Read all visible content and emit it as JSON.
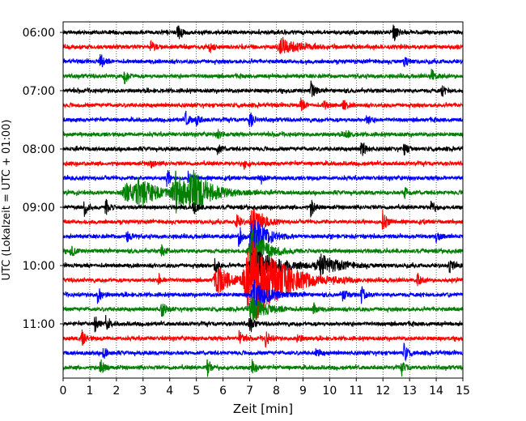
{
  "chart_data": {
    "type": "line",
    "subtype": "helicorder",
    "xlabel": "Zeit  [min]",
    "ylabel": "UTC (Lokalzeit = UTC + 01:00)",
    "xlim": [
      0,
      15
    ],
    "x_ticks": [
      0,
      1,
      2,
      3,
      4,
      5,
      6,
      7,
      8,
      9,
      10,
      11,
      12,
      13,
      14,
      15
    ],
    "y_ticks": [
      "06:00",
      "07:00",
      "08:00",
      "09:00",
      "10:00",
      "11:00"
    ],
    "y_range_utc": [
      "06:00",
      "12:00"
    ],
    "minutes_per_row": 15,
    "grid": "vertical dotted at each minute",
    "colors": [
      "#000000",
      "#ff0000",
      "#0000ff",
      "#008000"
    ],
    "rows": [
      {
        "start_utc": "06:00",
        "color": "#000000",
        "bursts": [
          {
            "t": 4.3,
            "a": 0.55
          },
          {
            "t": 12.4,
            "a": 0.7
          }
        ]
      },
      {
        "start_utc": "06:15",
        "color": "#ff0000",
        "bursts": [
          {
            "t": 3.3,
            "a": 0.4
          },
          {
            "t": 8.2,
            "a": 0.45,
            "w": 0.6
          },
          {
            "t": 5.5,
            "a": 0.35
          }
        ]
      },
      {
        "start_utc": "06:30",
        "color": "#0000ff",
        "bursts": [
          {
            "t": 1.4,
            "a": 0.5
          },
          {
            "t": 12.8,
            "a": 0.3
          }
        ]
      },
      {
        "start_utc": "06:45",
        "color": "#008000",
        "bursts": [
          {
            "t": 2.3,
            "a": 0.45
          },
          {
            "t": 13.8,
            "a": 0.5
          }
        ]
      },
      {
        "start_utc": "07:00",
        "color": "#000000",
        "bursts": [
          {
            "t": 9.3,
            "a": 0.6
          },
          {
            "t": 14.2,
            "a": 0.4
          }
        ]
      },
      {
        "start_utc": "07:15",
        "color": "#ff0000",
        "bursts": [
          {
            "t": 8.9,
            "a": 0.45
          },
          {
            "t": 10.5,
            "a": 0.4
          },
          {
            "t": 9.8,
            "a": 0.3
          }
        ]
      },
      {
        "start_utc": "07:30",
        "color": "#0000ff",
        "bursts": [
          {
            "t": 4.6,
            "a": 0.55
          },
          {
            "t": 7.0,
            "a": 0.55
          },
          {
            "t": 11.4,
            "a": 0.35
          },
          {
            "t": 5.0,
            "a": 0.3
          }
        ]
      },
      {
        "start_utc": "07:45",
        "color": "#008000",
        "bursts": [
          {
            "t": 10.6,
            "a": 0.4
          },
          {
            "t": 5.8,
            "a": 0.3
          }
        ]
      },
      {
        "start_utc": "08:00",
        "color": "#000000",
        "bursts": [
          {
            "t": 11.2,
            "a": 0.65
          },
          {
            "t": 12.8,
            "a": 0.4
          },
          {
            "t": 5.8,
            "a": 0.35
          }
        ]
      },
      {
        "start_utc": "08:15",
        "color": "#ff0000",
        "bursts": [
          {
            "t": 3.3,
            "a": 0.3
          },
          {
            "t": 6.8,
            "a": 0.3
          }
        ]
      },
      {
        "start_utc": "08:30",
        "color": "#0000ff",
        "bursts": [
          {
            "t": 3.9,
            "a": 0.55
          },
          {
            "t": 4.7,
            "a": 0.4
          },
          {
            "t": 7.4,
            "a": 0.35
          }
        ]
      },
      {
        "start_utc": "08:45",
        "color": "#008000",
        "bursts": [
          {
            "t": 2.4,
            "a": 0.6,
            "w": 0.6
          },
          {
            "t": 2.9,
            "a": 0.75,
            "w": 0.5
          },
          {
            "t": 4.2,
            "a": 1.25,
            "w": 0.45
          },
          {
            "t": 4.9,
            "a": 1.05,
            "w": 0.7
          },
          {
            "t": 12.8,
            "a": 0.4
          }
        ]
      },
      {
        "start_utc": "09:00",
        "color": "#000000",
        "bursts": [
          {
            "t": 0.8,
            "a": 0.5
          },
          {
            "t": 1.6,
            "a": 0.5
          },
          {
            "t": 4.9,
            "a": 0.5
          },
          {
            "t": 9.3,
            "a": 0.6
          },
          {
            "t": 13.8,
            "a": 0.5
          }
        ]
      },
      {
        "start_utc": "09:15",
        "color": "#ff0000",
        "bursts": [
          {
            "t": 6.5,
            "a": 0.5
          },
          {
            "t": 7.1,
            "a": 1.2,
            "w": 0.3
          },
          {
            "t": 12.0,
            "a": 0.75
          }
        ]
      },
      {
        "start_utc": "09:30",
        "color": "#0000ff",
        "bursts": [
          {
            "t": 2.4,
            "a": 0.5
          },
          {
            "t": 6.6,
            "a": 0.75
          },
          {
            "t": 7.1,
            "a": 1.4,
            "w": 0.4
          },
          {
            "t": 14.0,
            "a": 0.4
          }
        ]
      },
      {
        "start_utc": "09:45",
        "color": "#008000",
        "bursts": [
          {
            "t": 0.3,
            "a": 0.4
          },
          {
            "t": 3.7,
            "a": 0.35
          },
          {
            "t": 7.1,
            "a": 1.3,
            "w": 0.5
          }
        ]
      },
      {
        "start_utc": "10:00",
        "color": "#000000",
        "bursts": [
          {
            "t": 5.7,
            "a": 0.55
          },
          {
            "t": 7.2,
            "a": 1.0,
            "w": 0.8
          },
          {
            "t": 9.7,
            "a": 0.6,
            "w": 0.6
          },
          {
            "t": 14.5,
            "a": 0.5
          }
        ]
      },
      {
        "start_utc": "10:15",
        "color": "#ff0000",
        "bursts": [
          {
            "t": 5.8,
            "a": 0.8,
            "w": 0.5
          },
          {
            "t": 7.1,
            "a": 2.9,
            "w": 1.0
          },
          {
            "t": 13.3,
            "a": 0.4
          },
          {
            "t": 3.6,
            "a": 0.35
          }
        ]
      },
      {
        "start_utc": "10:30",
        "color": "#0000ff",
        "bursts": [
          {
            "t": 1.3,
            "a": 0.55
          },
          {
            "t": 7.2,
            "a": 0.9,
            "w": 0.5
          },
          {
            "t": 11.2,
            "a": 0.55
          },
          {
            "t": 10.5,
            "a": 0.4
          }
        ]
      },
      {
        "start_utc": "10:45",
        "color": "#008000",
        "bursts": [
          {
            "t": 3.7,
            "a": 0.5
          },
          {
            "t": 7.1,
            "a": 0.7,
            "w": 0.5
          },
          {
            "t": 9.4,
            "a": 0.35
          }
        ]
      },
      {
        "start_utc": "11:00",
        "color": "#000000",
        "bursts": [
          {
            "t": 1.2,
            "a": 0.5
          },
          {
            "t": 1.6,
            "a": 0.45
          },
          {
            "t": 7.0,
            "a": 0.55
          }
        ]
      },
      {
        "start_utc": "11:15",
        "color": "#ff0000",
        "bursts": [
          {
            "t": 0.7,
            "a": 0.5
          },
          {
            "t": 6.6,
            "a": 0.5
          },
          {
            "t": 7.6,
            "a": 0.5
          },
          {
            "t": 8.8,
            "a": 0.3
          }
        ]
      },
      {
        "start_utc": "11:30",
        "color": "#0000ff",
        "bursts": [
          {
            "t": 1.5,
            "a": 0.4
          },
          {
            "t": 12.8,
            "a": 0.6
          },
          {
            "t": 9.5,
            "a": 0.3
          }
        ]
      },
      {
        "start_utc": "11:45",
        "color": "#008000",
        "bursts": [
          {
            "t": 1.4,
            "a": 0.55
          },
          {
            "t": 5.4,
            "a": 0.65
          },
          {
            "t": 7.1,
            "a": 0.5
          },
          {
            "t": 12.7,
            "a": 0.4
          }
        ]
      }
    ]
  }
}
